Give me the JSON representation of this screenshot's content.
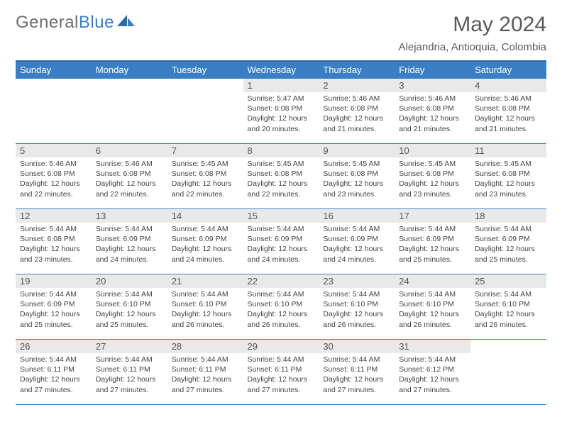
{
  "brand": {
    "part1": "General",
    "part2": "Blue"
  },
  "title": "May 2024",
  "location": "Alejandria, Antioquia, Colombia",
  "colors": {
    "header_bg": "#3a7fc4",
    "header_text": "#ffffff",
    "daynum_bg": "#e9e9e9",
    "rule": "#3a7fc4",
    "body_text": "#444444",
    "brand_grey": "#6e6e6e",
    "brand_blue": "#3a7fc4"
  },
  "fonts": {
    "title_size": 30,
    "location_size": 15,
    "weekday_size": 13,
    "cell_size": 10.5
  },
  "weekdays": [
    "Sunday",
    "Monday",
    "Tuesday",
    "Wednesday",
    "Thursday",
    "Friday",
    "Saturday"
  ],
  "weeks": [
    [
      null,
      null,
      null,
      {
        "n": "1",
        "sr": "5:47 AM",
        "ss": "6:08 PM",
        "dl": "12 hours and 20 minutes."
      },
      {
        "n": "2",
        "sr": "5:46 AM",
        "ss": "6:08 PM",
        "dl": "12 hours and 21 minutes."
      },
      {
        "n": "3",
        "sr": "5:46 AM",
        "ss": "6:08 PM",
        "dl": "12 hours and 21 minutes."
      },
      {
        "n": "4",
        "sr": "5:46 AM",
        "ss": "6:08 PM",
        "dl": "12 hours and 21 minutes."
      }
    ],
    [
      {
        "n": "5",
        "sr": "5:46 AM",
        "ss": "6:08 PM",
        "dl": "12 hours and 22 minutes."
      },
      {
        "n": "6",
        "sr": "5:46 AM",
        "ss": "6:08 PM",
        "dl": "12 hours and 22 minutes."
      },
      {
        "n": "7",
        "sr": "5:45 AM",
        "ss": "6:08 PM",
        "dl": "12 hours and 22 minutes."
      },
      {
        "n": "8",
        "sr": "5:45 AM",
        "ss": "6:08 PM",
        "dl": "12 hours and 22 minutes."
      },
      {
        "n": "9",
        "sr": "5:45 AM",
        "ss": "6:08 PM",
        "dl": "12 hours and 23 minutes."
      },
      {
        "n": "10",
        "sr": "5:45 AM",
        "ss": "6:08 PM",
        "dl": "12 hours and 23 minutes."
      },
      {
        "n": "11",
        "sr": "5:45 AM",
        "ss": "6:08 PM",
        "dl": "12 hours and 23 minutes."
      }
    ],
    [
      {
        "n": "12",
        "sr": "5:44 AM",
        "ss": "6:08 PM",
        "dl": "12 hours and 23 minutes."
      },
      {
        "n": "13",
        "sr": "5:44 AM",
        "ss": "6:09 PM",
        "dl": "12 hours and 24 minutes."
      },
      {
        "n": "14",
        "sr": "5:44 AM",
        "ss": "6:09 PM",
        "dl": "12 hours and 24 minutes."
      },
      {
        "n": "15",
        "sr": "5:44 AM",
        "ss": "6:09 PM",
        "dl": "12 hours and 24 minutes."
      },
      {
        "n": "16",
        "sr": "5:44 AM",
        "ss": "6:09 PM",
        "dl": "12 hours and 24 minutes."
      },
      {
        "n": "17",
        "sr": "5:44 AM",
        "ss": "6:09 PM",
        "dl": "12 hours and 25 minutes."
      },
      {
        "n": "18",
        "sr": "5:44 AM",
        "ss": "6:09 PM",
        "dl": "12 hours and 25 minutes."
      }
    ],
    [
      {
        "n": "19",
        "sr": "5:44 AM",
        "ss": "6:09 PM",
        "dl": "12 hours and 25 minutes."
      },
      {
        "n": "20",
        "sr": "5:44 AM",
        "ss": "6:10 PM",
        "dl": "12 hours and 25 minutes."
      },
      {
        "n": "21",
        "sr": "5:44 AM",
        "ss": "6:10 PM",
        "dl": "12 hours and 26 minutes."
      },
      {
        "n": "22",
        "sr": "5:44 AM",
        "ss": "6:10 PM",
        "dl": "12 hours and 26 minutes."
      },
      {
        "n": "23",
        "sr": "5:44 AM",
        "ss": "6:10 PM",
        "dl": "12 hours and 26 minutes."
      },
      {
        "n": "24",
        "sr": "5:44 AM",
        "ss": "6:10 PM",
        "dl": "12 hours and 26 minutes."
      },
      {
        "n": "25",
        "sr": "5:44 AM",
        "ss": "6:10 PM",
        "dl": "12 hours and 26 minutes."
      }
    ],
    [
      {
        "n": "26",
        "sr": "5:44 AM",
        "ss": "6:11 PM",
        "dl": "12 hours and 27 minutes."
      },
      {
        "n": "27",
        "sr": "5:44 AM",
        "ss": "6:11 PM",
        "dl": "12 hours and 27 minutes."
      },
      {
        "n": "28",
        "sr": "5:44 AM",
        "ss": "6:11 PM",
        "dl": "12 hours and 27 minutes."
      },
      {
        "n": "29",
        "sr": "5:44 AM",
        "ss": "6:11 PM",
        "dl": "12 hours and 27 minutes."
      },
      {
        "n": "30",
        "sr": "5:44 AM",
        "ss": "6:11 PM",
        "dl": "12 hours and 27 minutes."
      },
      {
        "n": "31",
        "sr": "5:44 AM",
        "ss": "6:12 PM",
        "dl": "12 hours and 27 minutes."
      },
      null
    ]
  ],
  "labels": {
    "sunrise": "Sunrise:",
    "sunset": "Sunset:",
    "daylight": "Daylight:"
  }
}
